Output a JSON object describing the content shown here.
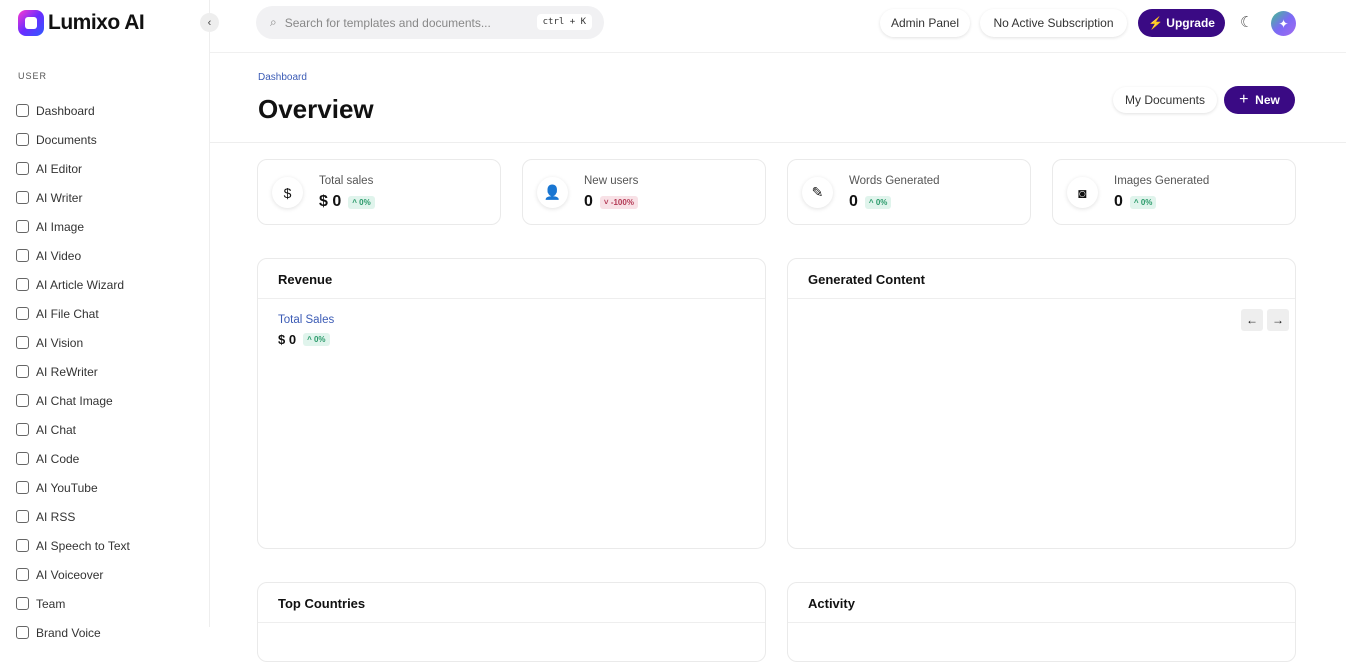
{
  "brand": {
    "name": "Lumixo AI"
  },
  "sidebar": {
    "section": "USER",
    "items": [
      {
        "label": "Dashboard"
      },
      {
        "label": "Documents"
      },
      {
        "label": "AI Editor"
      },
      {
        "label": "AI Writer"
      },
      {
        "label": "AI Image"
      },
      {
        "label": "AI Video"
      },
      {
        "label": "AI Article Wizard"
      },
      {
        "label": "AI File Chat"
      },
      {
        "label": "AI Vision"
      },
      {
        "label": "AI ReWriter"
      },
      {
        "label": "AI Chat Image"
      },
      {
        "label": "AI Chat"
      },
      {
        "label": "AI Code"
      },
      {
        "label": "AI YouTube"
      },
      {
        "label": "AI RSS"
      },
      {
        "label": "AI Speech to Text"
      },
      {
        "label": "AI Voiceover"
      },
      {
        "label": "Team"
      },
      {
        "label": "Brand Voice"
      }
    ]
  },
  "header": {
    "search_placeholder": "Search for templates and documents...",
    "shortcut": "ctrl + K",
    "admin": "Admin Panel",
    "subscription": "No Active Subscription",
    "upgrade": "Upgrade"
  },
  "page": {
    "breadcrumb": "Dashboard",
    "title": "Overview",
    "my_documents": "My Documents",
    "new": "New"
  },
  "stats": [
    {
      "label": "Total sales",
      "value": "$ 0",
      "change": "0%",
      "dir": "up",
      "icon": "dollar-icon"
    },
    {
      "label": "New users",
      "value": "0",
      "change": "-100%",
      "dir": "down",
      "icon": "user-plus-icon"
    },
    {
      "label": "Words Generated",
      "value": "0",
      "change": "0%",
      "dir": "up",
      "icon": "pencil-icon"
    },
    {
      "label": "Images Generated",
      "value": "0",
      "change": "0%",
      "dir": "up",
      "icon": "camera-icon"
    }
  ],
  "revenue": {
    "title": "Revenue",
    "sub": "Total Sales",
    "value": "$ 0",
    "change": "0%"
  },
  "generated": {
    "title": "Generated Content"
  },
  "top_countries": {
    "title": "Top Countries"
  },
  "activity": {
    "title": "Activity"
  },
  "colors": {
    "primary": "#3a0a84",
    "up": "#2a9a6a",
    "down": "#b33a55"
  }
}
